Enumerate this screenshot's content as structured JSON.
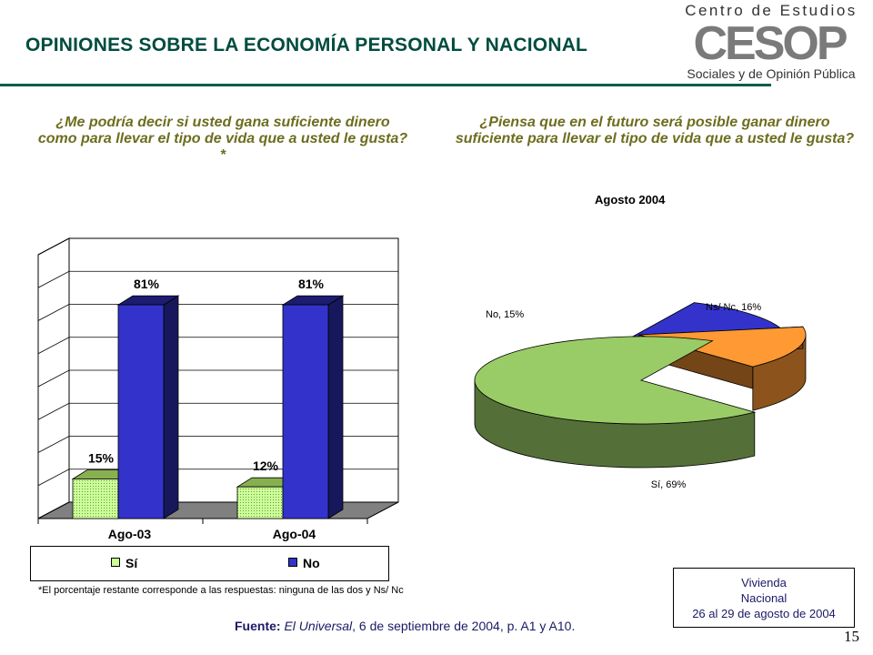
{
  "header": {
    "title": "OPINIONES SOBRE LA ECONOMÍA PERSONAL Y NACIONAL",
    "logo_top": "Centro de Estudios",
    "logo_mark": "CESOP",
    "logo_bottom": "Sociales y de Opinión Pública"
  },
  "questions": {
    "q1": "¿Me podría decir si usted gana suficiente dinero como para llevar el tipo de vida que a usted le gusta?*",
    "q2": "¿Piensa que en el futuro será posible ganar dinero suficiente para  llevar el tipo de vida que a usted le gusta?"
  },
  "chart_data": [
    {
      "type": "bar",
      "categories": [
        "Ago-03",
        "Ago-04"
      ],
      "series": [
        {
          "name": "Sí",
          "values": [
            15,
            12
          ],
          "labels": [
            "15%",
            "12%"
          ],
          "color": "#ccff99"
        },
        {
          "name": "No",
          "values": [
            81,
            81
          ],
          "labels": [
            "81%",
            "81%"
          ],
          "color": "#3333cc"
        }
      ],
      "ylim": [
        0,
        100
      ],
      "grid": true,
      "legend": "bottom"
    },
    {
      "type": "pie",
      "title": "Agosto 2004",
      "slices": [
        {
          "label": "Sí, 69%",
          "value": 69,
          "color": "#99cc66"
        },
        {
          "label": "No, 15%",
          "value": 15,
          "color": "#3333cc"
        },
        {
          "label": "Ns/ Nc, 16%",
          "value": 16,
          "color": "#ff9933"
        }
      ]
    }
  ],
  "footnote": "*El porcentaje restante corresponde a las respuestas: ninguna de las dos y Ns/ Nc",
  "source": {
    "label": "Fuente:",
    "publication": "El Universal",
    "rest": ", 6 de septiembre de 2004, p. A1 y A10."
  },
  "survey_box": {
    "line1": "Vivienda",
    "line2": "Nacional",
    "line3": "26 al 29 de agosto de 2004"
  },
  "page_number": "15"
}
